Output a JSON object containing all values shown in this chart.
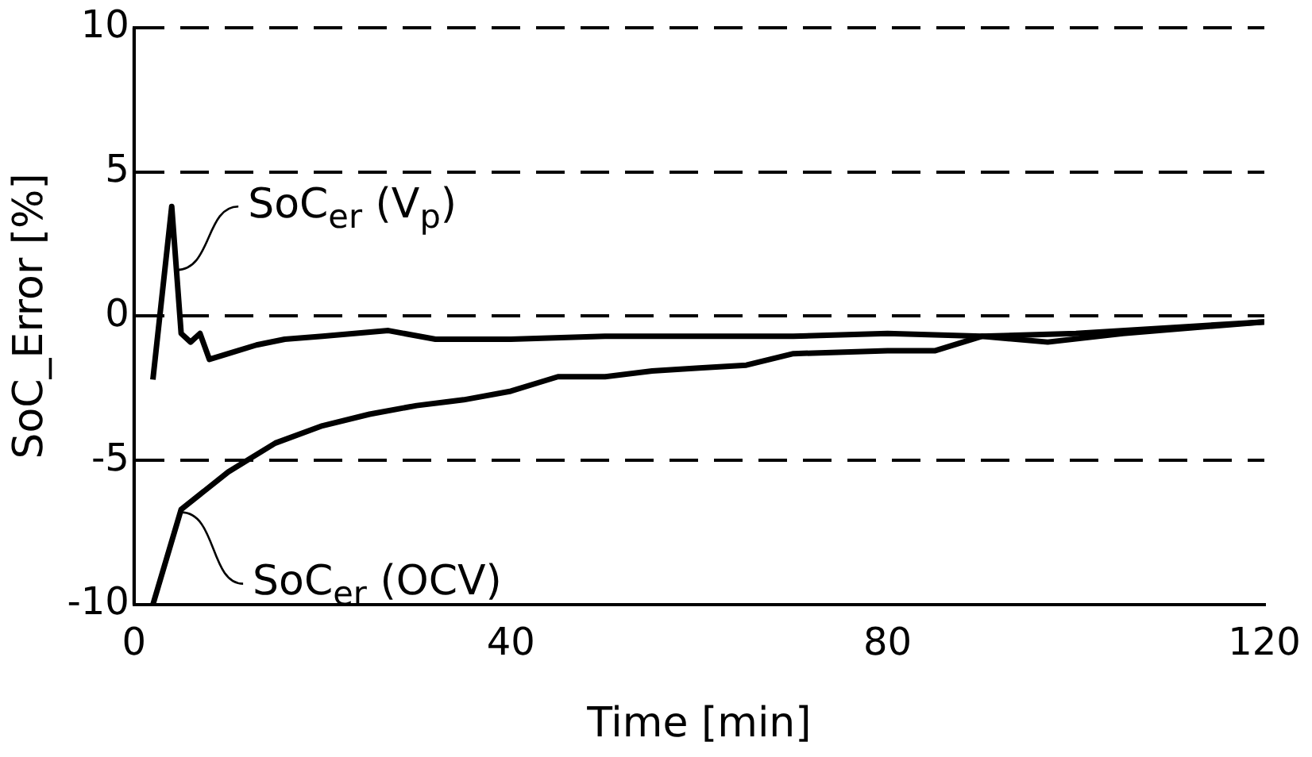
{
  "chart_data": {
    "type": "line",
    "xlabel": "Time [min]",
    "ylabel": "SoC_Error [%]",
    "xlim": [
      0,
      120
    ],
    "xticks": [
      0,
      40,
      80,
      120
    ],
    "ylim": [
      -10,
      10
    ],
    "yticks": [
      -10,
      -5,
      0,
      5,
      10
    ],
    "grid": "y",
    "legend": false,
    "marker": "none",
    "line_style": "solid",
    "series": [
      {
        "color": "#000000",
        "x": [
          2,
          4,
          5,
          6,
          7,
          8,
          10,
          13,
          16,
          20,
          27,
          32,
          40,
          50,
          60,
          70,
          80,
          90,
          97,
          105,
          120
        ],
        "values": [
          -2.2,
          3.8,
          -0.6,
          -0.9,
          -0.6,
          -1.5,
          -1.3,
          -1.0,
          -0.8,
          -0.7,
          -0.5,
          -0.8,
          -0.8,
          -0.7,
          -0.7,
          -0.7,
          -0.6,
          -0.7,
          -0.9,
          -0.6,
          -0.2
        ]
      },
      {
        "color": "#000000",
        "x": [
          2,
          5,
          10,
          15,
          20,
          25,
          30,
          35,
          40,
          43,
          45,
          50,
          55,
          60,
          65,
          70,
          80,
          85,
          90,
          100,
          110,
          120
        ],
        "values": [
          -10,
          -6.7,
          -5.4,
          -4.4,
          -3.8,
          -3.4,
          -3.1,
          -2.9,
          -2.6,
          -2.3,
          -2.1,
          -2.1,
          -1.9,
          -1.8,
          -1.7,
          -1.3,
          -1.2,
          -1.2,
          -0.7,
          -0.6,
          -0.4,
          -0.2
        ]
      }
    ],
    "annotations": [
      {
        "text": "SoC$_{er}$ (V$_{p}$)",
        "x": 4.5,
        "y": 1.6
      },
      {
        "text": "SoC$_{er}$ (OCV)",
        "x": 5,
        "y": -6.8
      }
    ]
  }
}
